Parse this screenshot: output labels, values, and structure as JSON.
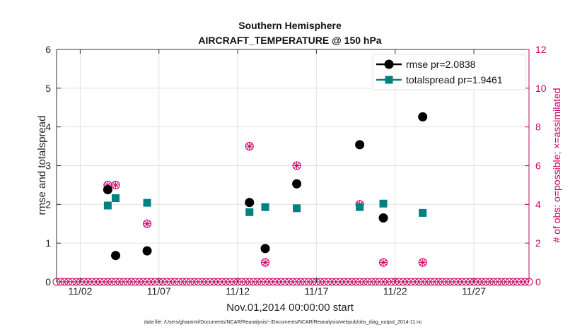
{
  "chart_data": {
    "type": "scatter",
    "title": "Southern Hemisphere",
    "subtitle": "AIRCRAFT_TEMPERATURE @ 150 hPa",
    "xlabel": "Nov.01,2014 00:00:00 start",
    "ylabel_left": "rmse and totalspread",
    "ylabel_right": "# of obs: o=possible; ×=assimilated",
    "footnote": "data file: /Users/gharamti/Documents/NCAR/Reanalysis/~/Documents/NCAR/Reanalysis/webpub/obs_diag_output_2014-11.nc",
    "xlim": [
      0.5,
      30.5
    ],
    "ylim_left": [
      0,
      6
    ],
    "ylim_right": [
      0,
      12
    ],
    "x_ticks": [
      {
        "value": 2,
        "label": "11/02"
      },
      {
        "value": 7,
        "label": "11/07"
      },
      {
        "value": 12,
        "label": "11/12"
      },
      {
        "value": 17,
        "label": "11/17"
      },
      {
        "value": 22,
        "label": "11/22"
      },
      {
        "value": 27,
        "label": "11/27"
      }
    ],
    "y_left_ticks": [
      {
        "value": 0,
        "label": "0"
      },
      {
        "value": 1,
        "label": "1"
      },
      {
        "value": 2,
        "label": "2"
      },
      {
        "value": 3,
        "label": "3"
      },
      {
        "value": 4,
        "label": "4"
      },
      {
        "value": 5,
        "label": "5"
      },
      {
        "value": 6,
        "label": "6"
      }
    ],
    "y_right_ticks": [
      {
        "value": 0,
        "label": "0"
      },
      {
        "value": 2,
        "label": "2"
      },
      {
        "value": 4,
        "label": "4"
      },
      {
        "value": 6,
        "label": "6"
      },
      {
        "value": 8,
        "label": "8"
      },
      {
        "value": 10,
        "label": "10"
      },
      {
        "value": 12,
        "label": "12"
      }
    ],
    "grid": true,
    "legend_position": "top-right",
    "series": [
      {
        "name": "rmse",
        "legend_label": "rmse pr=2.0838",
        "color": "#000000",
        "marker": "circle",
        "axis": "left",
        "points": [
          {
            "x": 3.75,
            "y": 2.38
          },
          {
            "x": 4.25,
            "y": 0.68
          },
          {
            "x": 6.25,
            "y": 0.8
          },
          {
            "x": 12.75,
            "y": 2.05
          },
          {
            "x": 13.75,
            "y": 0.86
          },
          {
            "x": 15.75,
            "y": 2.53
          },
          {
            "x": 19.75,
            "y": 3.54
          },
          {
            "x": 21.25,
            "y": 1.65
          },
          {
            "x": 23.75,
            "y": 4.26
          }
        ]
      },
      {
        "name": "totalspread",
        "legend_label": "totalspread pr=1.9461",
        "color": "#008080",
        "marker": "square",
        "axis": "left",
        "points": [
          {
            "x": 3.75,
            "y": 1.97
          },
          {
            "x": 4.25,
            "y": 2.16
          },
          {
            "x": 6.25,
            "y": 2.04
          },
          {
            "x": 12.75,
            "y": 1.8
          },
          {
            "x": 13.75,
            "y": 1.93
          },
          {
            "x": 15.75,
            "y": 1.9
          },
          {
            "x": 19.75,
            "y": 1.93
          },
          {
            "x": 21.25,
            "y": 2.02
          },
          {
            "x": 23.75,
            "y": 1.78
          }
        ]
      },
      {
        "name": "obs_assimilated",
        "color": "#cc0066",
        "marker": "circle-star",
        "axis": "right",
        "points": [
          {
            "x": 3.75,
            "y": 5
          },
          {
            "x": 4.25,
            "y": 5
          },
          {
            "x": 6.25,
            "y": 3
          },
          {
            "x": 12.75,
            "y": 7
          },
          {
            "x": 13.75,
            "y": 1
          },
          {
            "x": 15.75,
            "y": 6
          },
          {
            "x": 19.75,
            "y": 4
          },
          {
            "x": 21.25,
            "y": 1
          },
          {
            "x": 23.75,
            "y": 1
          }
        ]
      },
      {
        "name": "obs_possible_zero_baseline",
        "color": "#cc0066",
        "marker": "circle-open",
        "axis": "right",
        "x_start": 0.5,
        "x_end": 30.5,
        "x_step": 0.25,
        "y": 0
      }
    ]
  }
}
